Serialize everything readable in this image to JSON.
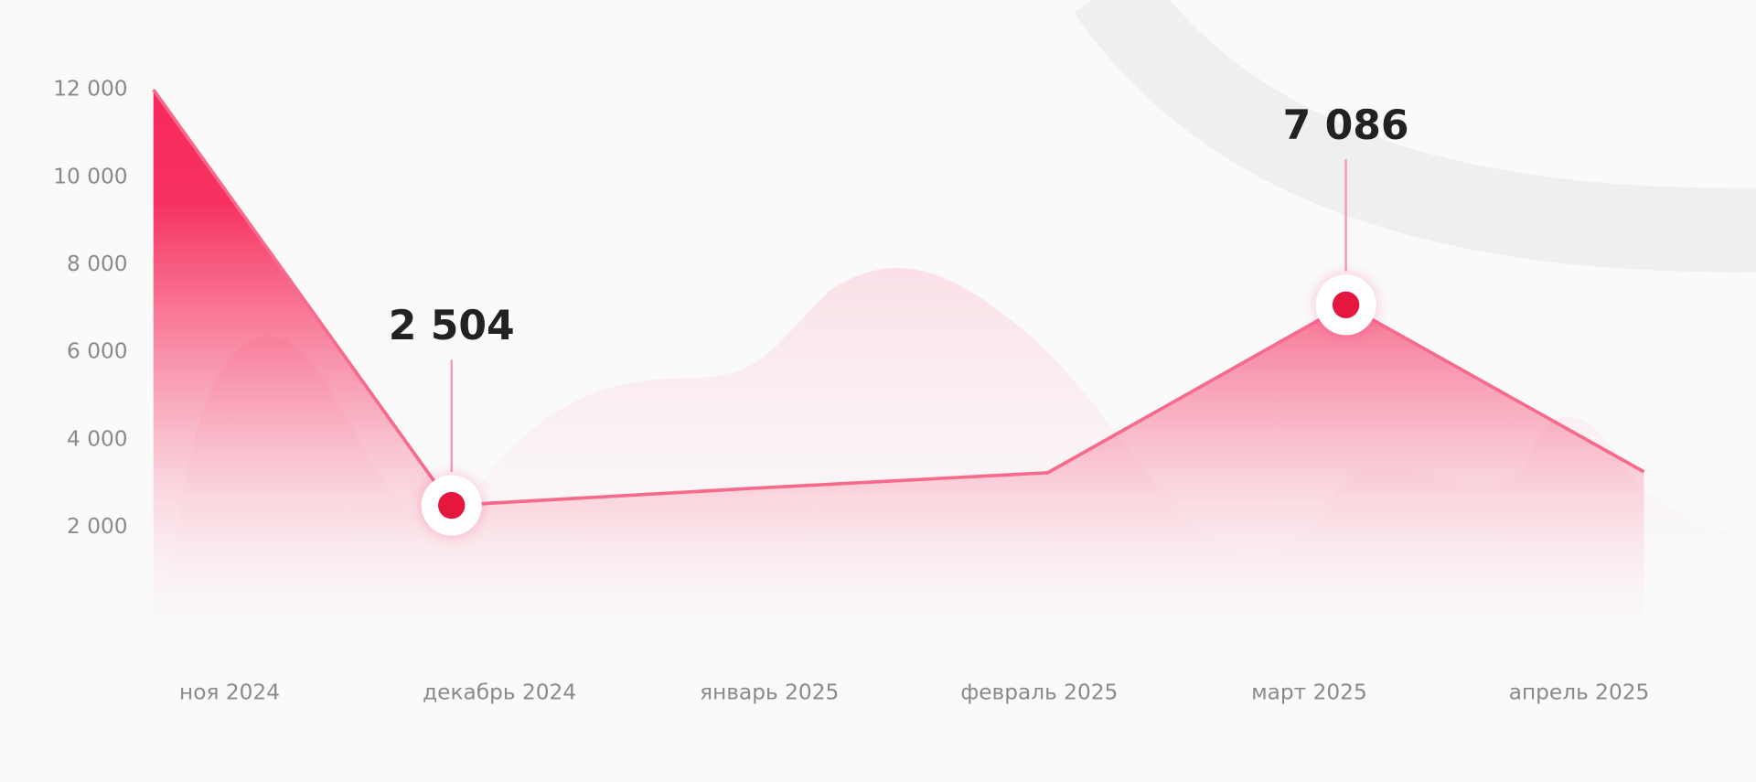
{
  "chart_data": {
    "type": "line",
    "categories": [
      "ноя 2024",
      "декабрь 2024",
      "январь 2025",
      "февраль 2025",
      "март 2025",
      "апрель 2025"
    ],
    "values": [
      12000,
      2504,
      2890,
      3250,
      7086,
      3270
    ],
    "value_labels": [
      null,
      "2 504",
      null,
      null,
      "7 086",
      null
    ],
    "color": "#f76a8c",
    "ylim": [
      0,
      12000
    ],
    "yticks": [
      {
        "value": 2000,
        "label": "2 000"
      },
      {
        "value": 4000,
        "label": "4 000"
      },
      {
        "value": 6000,
        "label": "6 000"
      },
      {
        "value": 8000,
        "label": "8 000"
      },
      {
        "value": 10000,
        "label": "10 000"
      },
      {
        "value": 12000,
        "label": "12 000"
      }
    ]
  }
}
